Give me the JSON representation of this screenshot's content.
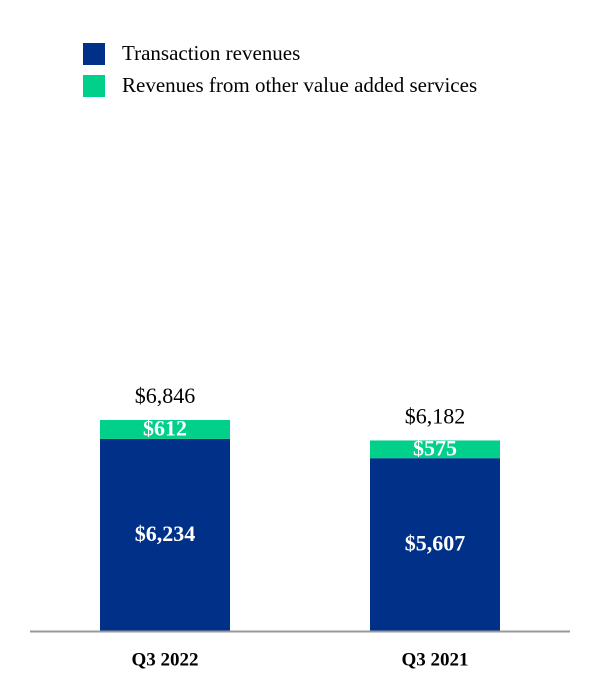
{
  "chart_data": {
    "type": "stacked_bar",
    "categories": [
      "Q3 2022",
      "Q3 2021"
    ],
    "series": [
      {
        "name": "Transaction revenues",
        "color": "#003087",
        "values": [
          6234,
          5607
        ],
        "value_labels": [
          "$6,234",
          "$5,607"
        ]
      },
      {
        "name": "Revenues from other value added services",
        "color": "#00d08a",
        "values": [
          612,
          575
        ],
        "value_labels": [
          "$612",
          "$575"
        ]
      }
    ],
    "totals": [
      6846,
      6182
    ],
    "total_labels": [
      "$6,846",
      "$6,182"
    ],
    "legend": "top-left"
  }
}
